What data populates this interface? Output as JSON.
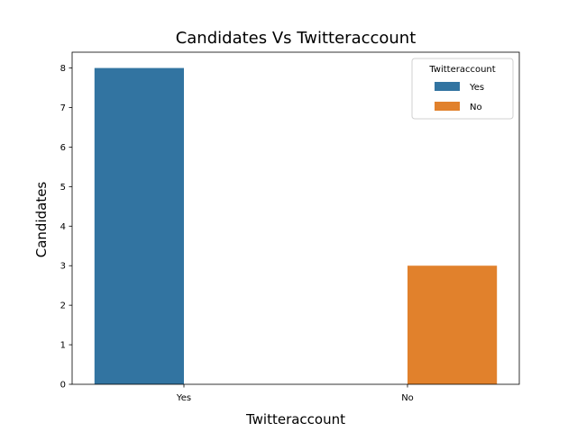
{
  "chart_data": {
    "type": "bar",
    "title": "Candidates Vs Twitteraccount",
    "xlabel": "Twitteraccount",
    "ylabel": "Candidates",
    "categories": [
      "Yes",
      "No"
    ],
    "series": [
      {
        "name": "Yes",
        "values": [
          8,
          null
        ],
        "color": "#3274a1"
      },
      {
        "name": "No",
        "values": [
          null,
          3
        ],
        "color": "#e1812c"
      }
    ],
    "ylim": [
      0,
      8.4
    ],
    "yticks": [
      0,
      1,
      2,
      3,
      4,
      5,
      6,
      7,
      8
    ],
    "grid": false,
    "legend": {
      "title": "Twitteraccount",
      "placement": "top-right"
    }
  }
}
